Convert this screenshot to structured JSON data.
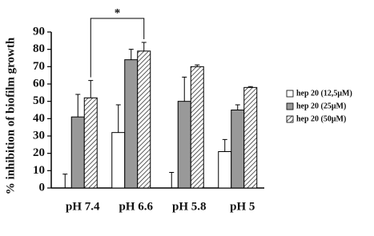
{
  "chart_data": {
    "type": "bar",
    "y_label": "% inhibition of biofilm growth",
    "categories": [
      "pH 7.4",
      "pH 6.6",
      "pH 5.8",
      "pH 5"
    ],
    "series": [
      {
        "name": "hep 20 (12,5μM)",
        "color": "#ffffff",
        "values": [
          0,
          32,
          0,
          21
        ],
        "errors": [
          8,
          16,
          9,
          7
        ]
      },
      {
        "name": "hep 20 (25μM)",
        "color": "#999999",
        "values": [
          41,
          74,
          50,
          45
        ],
        "errors": [
          13,
          6,
          14,
          3
        ]
      },
      {
        "name": "hep 20 (50μM)",
        "color": "#333333",
        "hatch": true,
        "values": [
          52,
          79,
          70,
          58
        ],
        "errors": [
          10,
          5,
          1,
          0.5
        ]
      }
    ],
    "ylim": [
      0,
      90
    ],
    "yticks": [
      0,
      10,
      20,
      30,
      40,
      50,
      60,
      70,
      80,
      90
    ],
    "annotation": "*"
  }
}
